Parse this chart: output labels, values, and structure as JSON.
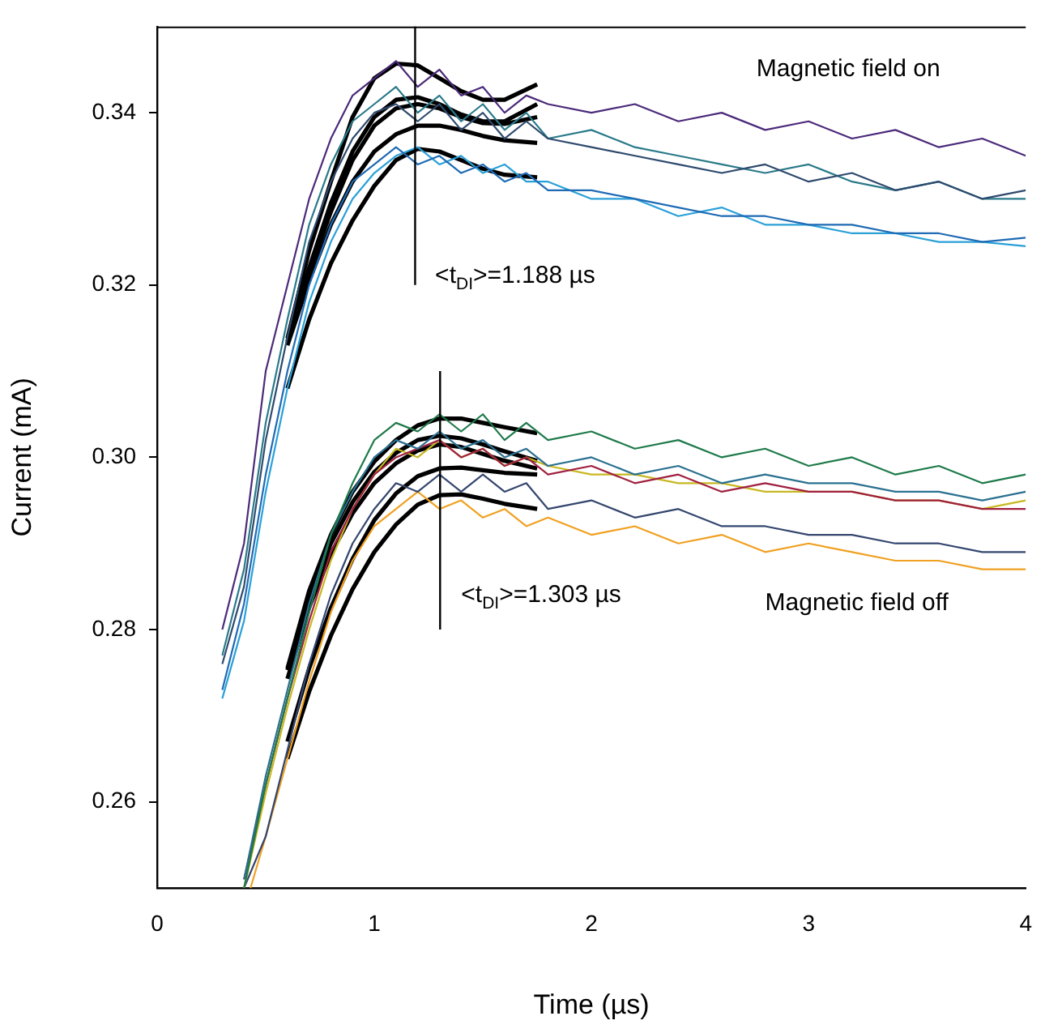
{
  "chart_data": {
    "type": "line",
    "xlabel": "Time (µs)",
    "ylabel": "Current (mA)",
    "xlim": [
      0,
      4
    ],
    "xticks": [
      0,
      1,
      2,
      3,
      4
    ],
    "ylim": [
      0.25,
      0.35
    ],
    "yticks": [
      {
        "value": 0.26,
        "label": "0.26"
      },
      {
        "value": 0.28,
        "label": "0.28"
      },
      {
        "value": 0.3,
        "label": "0.30"
      },
      {
        "value": 0.32,
        "label": "0.32"
      },
      {
        "value": 0.34,
        "label": "0.34"
      }
    ],
    "ref_lines": [
      {
        "axis": "x",
        "value": 1.188,
        "color": "#000000"
      },
      {
        "axis": "x",
        "value": 1.303,
        "color": "#000000"
      }
    ],
    "grid": false,
    "legend": false,
    "marker": "none",
    "line_style": "solid",
    "annotations": [
      "Magnetic field on",
      "<t$_{DI}$>=1.188 µs",
      "<t$_{DI}$>=1.303 µs",
      "Magnetic field off"
    ],
    "series": [
      {
        "color": "#4b2a7a",
        "x": [
          0.3,
          0.4,
          0.5,
          0.6,
          0.7,
          0.8,
          0.9,
          1.0,
          1.1,
          1.2,
          1.3,
          1.4,
          1.5,
          1.6,
          1.7,
          1.8,
          2.0,
          2.2,
          2.4,
          2.6,
          2.8,
          3.0,
          3.2,
          3.4,
          3.6,
          3.8,
          4.0
        ],
        "values": [
          0.28,
          0.29,
          0.31,
          0.32,
          0.33,
          0.337,
          0.342,
          0.344,
          0.346,
          0.343,
          0.345,
          0.342,
          0.343,
          0.34,
          0.342,
          0.341,
          0.34,
          0.341,
          0.339,
          0.34,
          0.338,
          0.339,
          0.337,
          0.338,
          0.336,
          0.337,
          0.335
        ]
      },
      {
        "color": "#2e4a6e",
        "x": [
          0.3,
          0.4,
          0.5,
          0.6,
          0.7,
          0.8,
          0.9,
          1.0,
          1.1,
          1.2,
          1.3,
          1.4,
          1.5,
          1.6,
          1.7,
          1.8,
          2.0,
          2.2,
          2.4,
          2.6,
          2.8,
          3.0,
          3.2,
          3.4,
          3.6,
          3.8,
          4.0
        ],
        "values": [
          0.276,
          0.285,
          0.302,
          0.314,
          0.325,
          0.332,
          0.337,
          0.34,
          0.341,
          0.339,
          0.341,
          0.338,
          0.34,
          0.337,
          0.339,
          0.337,
          0.336,
          0.335,
          0.334,
          0.333,
          0.334,
          0.332,
          0.333,
          0.331,
          0.332,
          0.33,
          0.331
        ]
      },
      {
        "color": "#2a7a8a",
        "x": [
          0.3,
          0.4,
          0.5,
          0.6,
          0.7,
          0.8,
          0.9,
          1.0,
          1.1,
          1.2,
          1.3,
          1.4,
          1.5,
          1.6,
          1.7,
          1.8,
          2.0,
          2.2,
          2.4,
          2.6,
          2.8,
          3.0,
          3.2,
          3.4,
          3.6,
          3.8,
          4.0
        ],
        "values": [
          0.277,
          0.287,
          0.304,
          0.316,
          0.327,
          0.334,
          0.339,
          0.341,
          0.343,
          0.34,
          0.342,
          0.339,
          0.341,
          0.338,
          0.34,
          0.337,
          0.338,
          0.336,
          0.335,
          0.334,
          0.333,
          0.334,
          0.332,
          0.331,
          0.332,
          0.33,
          0.33
        ]
      },
      {
        "color": "#1e6ab4",
        "x": [
          0.3,
          0.4,
          0.5,
          0.6,
          0.7,
          0.8,
          0.9,
          1.0,
          1.1,
          1.2,
          1.3,
          1.4,
          1.5,
          1.6,
          1.7,
          1.8,
          2.0,
          2.2,
          2.4,
          2.6,
          2.8,
          3.0,
          3.2,
          3.4,
          3.6,
          3.8,
          4.0
        ],
        "values": [
          0.273,
          0.283,
          0.298,
          0.31,
          0.32,
          0.327,
          0.332,
          0.334,
          0.336,
          0.334,
          0.335,
          0.333,
          0.334,
          0.332,
          0.333,
          0.331,
          0.331,
          0.33,
          0.329,
          0.328,
          0.328,
          0.327,
          0.327,
          0.326,
          0.326,
          0.325,
          0.3255
        ]
      },
      {
        "color": "#2aa0d8",
        "x": [
          0.3,
          0.4,
          0.5,
          0.6,
          0.7,
          0.8,
          0.9,
          1.0,
          1.1,
          1.2,
          1.3,
          1.4,
          1.5,
          1.6,
          1.7,
          1.8,
          2.0,
          2.2,
          2.4,
          2.6,
          2.8,
          3.0,
          3.2,
          3.4,
          3.6,
          3.8,
          4.0
        ],
        "values": [
          0.272,
          0.281,
          0.296,
          0.308,
          0.318,
          0.325,
          0.33,
          0.333,
          0.335,
          0.336,
          0.334,
          0.335,
          0.333,
          0.334,
          0.332,
          0.332,
          0.33,
          0.33,
          0.328,
          0.329,
          0.327,
          0.327,
          0.326,
          0.326,
          0.325,
          0.325,
          0.3245
        ]
      },
      {
        "color": "#1e7a4a",
        "x": [
          0.4,
          0.5,
          0.6,
          0.7,
          0.8,
          0.9,
          1.0,
          1.1,
          1.2,
          1.3,
          1.4,
          1.5,
          1.6,
          1.7,
          1.8,
          2.0,
          2.2,
          2.4,
          2.6,
          2.8,
          3.0,
          3.2,
          3.4,
          3.6,
          3.8,
          4.0
        ],
        "values": [
          0.25,
          0.262,
          0.272,
          0.282,
          0.291,
          0.297,
          0.302,
          0.304,
          0.303,
          0.305,
          0.303,
          0.305,
          0.302,
          0.304,
          0.302,
          0.303,
          0.301,
          0.302,
          0.3,
          0.301,
          0.299,
          0.3,
          0.298,
          0.299,
          0.297,
          0.298
        ]
      },
      {
        "color": "#2a7090",
        "x": [
          0.4,
          0.5,
          0.6,
          0.7,
          0.8,
          0.9,
          1.0,
          1.1,
          1.2,
          1.3,
          1.4,
          1.5,
          1.6,
          1.7,
          1.8,
          2.0,
          2.2,
          2.4,
          2.6,
          2.8,
          3.0,
          3.2,
          3.4,
          3.6,
          3.8,
          4.0
        ],
        "values": [
          0.251,
          0.263,
          0.273,
          0.283,
          0.291,
          0.296,
          0.3,
          0.302,
          0.301,
          0.303,
          0.301,
          0.302,
          0.3,
          0.301,
          0.299,
          0.3,
          0.298,
          0.299,
          0.297,
          0.298,
          0.297,
          0.297,
          0.296,
          0.296,
          0.295,
          0.296
        ]
      },
      {
        "color": "#a02040",
        "x": [
          0.4,
          0.5,
          0.6,
          0.7,
          0.8,
          0.9,
          1.0,
          1.1,
          1.2,
          1.3,
          1.4,
          1.5,
          1.6,
          1.7,
          1.8,
          2.0,
          2.2,
          2.4,
          2.6,
          2.8,
          3.0,
          3.2,
          3.4,
          3.6,
          3.8,
          4.0
        ],
        "values": [
          0.251,
          0.262,
          0.272,
          0.281,
          0.289,
          0.294,
          0.298,
          0.3,
          0.301,
          0.302,
          0.3,
          0.301,
          0.299,
          0.3,
          0.298,
          0.299,
          0.297,
          0.298,
          0.296,
          0.297,
          0.296,
          0.296,
          0.295,
          0.295,
          0.294,
          0.294
        ]
      },
      {
        "color": "#c8b820",
        "x": [
          0.4,
          0.5,
          0.6,
          0.7,
          0.8,
          0.9,
          1.0,
          1.1,
          1.2,
          1.3,
          1.4,
          1.5,
          1.6,
          1.7,
          1.8,
          2.0,
          2.2,
          2.4,
          2.6,
          2.8,
          3.0,
          3.2,
          3.4,
          3.6,
          3.8,
          4.0
        ],
        "values": [
          0.25,
          0.261,
          0.271,
          0.28,
          0.288,
          0.294,
          0.298,
          0.301,
          0.3,
          0.302,
          0.3,
          0.301,
          0.299,
          0.3,
          0.299,
          0.298,
          0.298,
          0.297,
          0.297,
          0.296,
          0.296,
          0.296,
          0.295,
          0.295,
          0.294,
          0.295
        ]
      },
      {
        "color": "#34466e",
        "x": [
          0.4,
          0.5,
          0.6,
          0.7,
          0.8,
          0.9,
          1.0,
          1.1,
          1.2,
          1.3,
          1.4,
          1.5,
          1.6,
          1.7,
          1.8,
          2.0,
          2.2,
          2.4,
          2.6,
          2.8,
          3.0,
          3.2,
          3.4,
          3.6,
          3.8,
          4.0
        ],
        "values": [
          0.25,
          0.256,
          0.266,
          0.276,
          0.284,
          0.29,
          0.294,
          0.297,
          0.296,
          0.298,
          0.296,
          0.298,
          0.296,
          0.297,
          0.294,
          0.295,
          0.293,
          0.294,
          0.292,
          0.292,
          0.291,
          0.291,
          0.29,
          0.29,
          0.289,
          0.289
        ]
      },
      {
        "color": "#f0a020",
        "x": [
          0.43,
          0.5,
          0.6,
          0.7,
          0.8,
          0.9,
          1.0,
          1.1,
          1.2,
          1.3,
          1.4,
          1.5,
          1.6,
          1.7,
          1.8,
          2.0,
          2.2,
          2.4,
          2.6,
          2.8,
          3.0,
          3.2,
          3.4,
          3.6,
          3.8,
          4.0
        ],
        "values": [
          0.25,
          0.256,
          0.265,
          0.274,
          0.282,
          0.288,
          0.292,
          0.294,
          0.296,
          0.294,
          0.295,
          0.293,
          0.294,
          0.292,
          0.293,
          0.291,
          0.292,
          0.29,
          0.291,
          0.289,
          0.29,
          0.289,
          0.288,
          0.288,
          0.287,
          0.287
        ]
      },
      {
        "color": "#000000",
        "x": [
          0.6,
          0.7,
          0.8,
          0.9,
          1.0,
          1.1,
          1.2,
          1.3,
          1.4,
          1.5,
          1.6,
          1.75
        ],
        "values": [
          0.3138,
          0.324,
          0.332,
          0.3395,
          0.344,
          0.3457,
          0.3455,
          0.344,
          0.3425,
          0.3415,
          0.3415,
          0.3433
        ]
      },
      {
        "color": "#000000",
        "x": [
          0.6,
          0.7,
          0.8,
          0.9,
          1.0,
          1.1,
          1.2,
          1.3,
          1.4,
          1.5,
          1.6,
          1.75
        ],
        "values": [
          0.3135,
          0.322,
          0.3295,
          0.3355,
          0.3395,
          0.3415,
          0.3418,
          0.341,
          0.3398,
          0.339,
          0.339,
          0.341
        ]
      },
      {
        "color": "#000000",
        "x": [
          0.6,
          0.7,
          0.8,
          0.9,
          1.0,
          1.1,
          1.2,
          1.3,
          1.4,
          1.5,
          1.6,
          1.75
        ],
        "values": [
          0.3133,
          0.3215,
          0.3285,
          0.3345,
          0.3385,
          0.3405,
          0.341,
          0.3405,
          0.3395,
          0.3388,
          0.3387,
          0.3395
        ]
      },
      {
        "color": "#000000",
        "x": [
          0.6,
          0.7,
          0.8,
          0.9,
          1.0,
          1.1,
          1.2,
          1.3,
          1.4,
          1.5,
          1.6,
          1.75
        ],
        "values": [
          0.313,
          0.3205,
          0.327,
          0.332,
          0.3355,
          0.3375,
          0.3385,
          0.3385,
          0.338,
          0.3373,
          0.3368,
          0.3365
        ]
      },
      {
        "color": "#000000",
        "x": [
          0.6,
          0.7,
          0.8,
          0.9,
          1.0,
          1.1,
          1.2,
          1.3,
          1.4,
          1.5,
          1.6,
          1.75
        ],
        "values": [
          0.308,
          0.316,
          0.3225,
          0.3275,
          0.3315,
          0.3345,
          0.3358,
          0.3355,
          0.3345,
          0.3335,
          0.3328,
          0.3325
        ]
      },
      {
        "color": "#000000",
        "x": [
          0.6,
          0.7,
          0.8,
          0.9,
          1.0,
          1.1,
          1.2,
          1.3,
          1.4,
          1.5,
          1.6,
          1.75
        ],
        "values": [
          0.2755,
          0.2845,
          0.291,
          0.296,
          0.2995,
          0.302,
          0.3037,
          0.3045,
          0.3045,
          0.304,
          0.3035,
          0.3028
        ]
      },
      {
        "color": "#000000",
        "x": [
          0.6,
          0.7,
          0.8,
          0.9,
          1.0,
          1.1,
          1.2,
          1.3,
          1.4,
          1.5,
          1.6,
          1.75
        ],
        "values": [
          0.2753,
          0.2838,
          0.29,
          0.2948,
          0.2983,
          0.3005,
          0.302,
          0.3025,
          0.3022,
          0.3015,
          0.3007,
          0.2996
        ]
      },
      {
        "color": "#000000",
        "x": [
          0.6,
          0.7,
          0.8,
          0.9,
          1.0,
          1.1,
          1.2,
          1.3,
          1.4,
          1.5,
          1.6,
          1.75
        ],
        "values": [
          0.2743,
          0.2826,
          0.2888,
          0.2935,
          0.297,
          0.2993,
          0.3008,
          0.3015,
          0.3012,
          0.3004,
          0.2996,
          0.2987
        ]
      },
      {
        "color": "#000000",
        "x": [
          0.6,
          0.7,
          0.8,
          0.9,
          1.0,
          1.1,
          1.2,
          1.3,
          1.4,
          1.5,
          1.6,
          1.75
        ],
        "values": [
          0.267,
          0.2755,
          0.2825,
          0.2882,
          0.2927,
          0.2958,
          0.2978,
          0.2987,
          0.2988,
          0.2985,
          0.2982,
          0.298
        ]
      },
      {
        "color": "#000000",
        "x": [
          0.6,
          0.7,
          0.8,
          0.9,
          1.0,
          1.1,
          1.2,
          1.3,
          1.4,
          1.5,
          1.6,
          1.75
        ],
        "values": [
          0.265,
          0.2728,
          0.2793,
          0.2847,
          0.289,
          0.2922,
          0.2945,
          0.2956,
          0.2957,
          0.2952,
          0.2946,
          0.294
        ]
      }
    ]
  }
}
